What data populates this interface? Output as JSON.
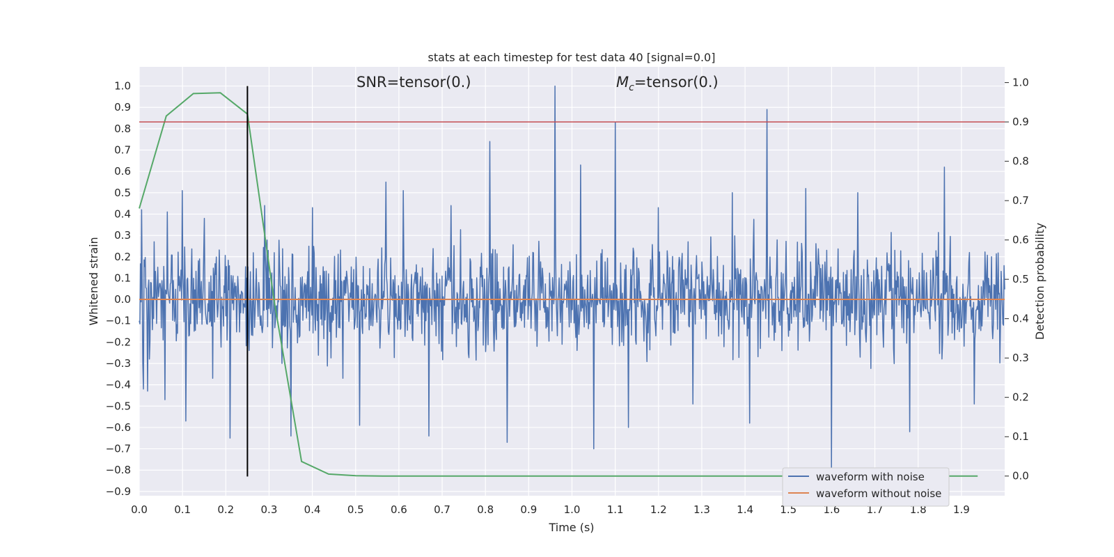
{
  "chart_data": {
    "type": "line",
    "title": "stats at each timestep for test data 40 [signal=0.0]",
    "xlabel": "Time (s)",
    "ylabel_left": "Whitened strain",
    "ylabel_right": "Detection probability",
    "xlim": [
      0.0,
      2.0
    ],
    "ylim_left": [
      -0.92,
      1.09
    ],
    "ylim_right": [
      -0.05,
      1.04
    ],
    "x_ticks": [
      "0.0",
      "0.1",
      "0.2",
      "0.3",
      "0.4",
      "0.5",
      "0.6",
      "0.7",
      "0.8",
      "0.9",
      "1.0",
      "1.1",
      "1.2",
      "1.3",
      "1.4",
      "1.5",
      "1.6",
      "1.7",
      "1.8",
      "1.9"
    ],
    "y_ticks_left": [
      "1.0",
      "0.9",
      "0.8",
      "0.7",
      "0.6",
      "0.5",
      "0.4",
      "0.3",
      "0.2",
      "0.1",
      "0.0",
      "−0.1",
      "−0.2",
      "−0.3",
      "−0.4",
      "−0.5",
      "−0.6",
      "−0.7",
      "−0.8",
      "−0.9"
    ],
    "y_ticks_right": [
      "1.0",
      "0.9",
      "0.8",
      "0.7",
      "0.6",
      "0.5",
      "0.4",
      "0.3",
      "0.2",
      "0.1",
      "0.0"
    ],
    "grid": true,
    "legend_position": "bottom-right",
    "annotations": {
      "snr_text": "SNR=tensor(0.)",
      "mc_text_symbol": "M",
      "mc_text_sub": "c",
      "mc_text_rest": "=tensor(0.)"
    },
    "series": [
      {
        "name": "waveform with noise",
        "color": "#4c72b0",
        "axis": "left",
        "x_start": 0.0,
        "x_end": 2.0,
        "spikes": [
          {
            "x": 0.005,
            "y": 0.42
          },
          {
            "x": 0.01,
            "y": -0.42
          },
          {
            "x": 0.02,
            "y": -0.43
          },
          {
            "x": 0.035,
            "y": 0.27
          },
          {
            "x": 0.06,
            "y": -0.47
          },
          {
            "x": 0.065,
            "y": 0.41
          },
          {
            "x": 0.1,
            "y": 0.51
          },
          {
            "x": 0.107,
            "y": -0.57
          },
          {
            "x": 0.15,
            "y": 0.38
          },
          {
            "x": 0.17,
            "y": -0.37
          },
          {
            "x": 0.21,
            "y": -0.65
          },
          {
            "x": 0.29,
            "y": 0.44
          },
          {
            "x": 0.33,
            "y": -0.3
          },
          {
            "x": 0.35,
            "y": -0.64
          },
          {
            "x": 0.4,
            "y": 0.43
          },
          {
            "x": 0.47,
            "y": -0.37
          },
          {
            "x": 0.51,
            "y": -0.59
          },
          {
            "x": 0.57,
            "y": 0.55
          },
          {
            "x": 0.61,
            "y": 0.51
          },
          {
            "x": 0.67,
            "y": -0.64
          },
          {
            "x": 0.72,
            "y": 0.44
          },
          {
            "x": 0.81,
            "y": 0.74
          },
          {
            "x": 0.85,
            "y": -0.67
          },
          {
            "x": 0.96,
            "y": 1.0
          },
          {
            "x": 1.02,
            "y": 0.63
          },
          {
            "x": 1.05,
            "y": -0.7
          },
          {
            "x": 1.1,
            "y": 0.83
          },
          {
            "x": 1.13,
            "y": -0.6
          },
          {
            "x": 1.2,
            "y": 0.43
          },
          {
            "x": 1.28,
            "y": -0.49
          },
          {
            "x": 1.37,
            "y": 0.5
          },
          {
            "x": 1.41,
            "y": -0.58
          },
          {
            "x": 1.45,
            "y": 0.89
          },
          {
            "x": 1.54,
            "y": 0.52
          },
          {
            "x": 1.6,
            "y": -0.8
          },
          {
            "x": 1.66,
            "y": 0.5
          },
          {
            "x": 1.78,
            "y": -0.62
          },
          {
            "x": 1.86,
            "y": 0.62
          },
          {
            "x": 1.93,
            "y": -0.49
          }
        ],
        "typical_amplitude": 0.22
      },
      {
        "name": "waveform without noise",
        "color": "#dd8452",
        "axis": "left",
        "x": [
          0.0,
          2.0
        ],
        "y": [
          0.0,
          0.0
        ]
      },
      {
        "name": "",
        "color": "#55a868",
        "axis": "right",
        "x": [
          0.0,
          0.0625,
          0.125,
          0.1875,
          0.25,
          0.3125,
          0.375,
          0.4375,
          0.5,
          0.5625,
          0.625,
          0.6875,
          0.75,
          0.8125,
          0.875,
          0.9375,
          1.0,
          1.0625,
          1.125,
          1.1875,
          1.25,
          1.3125,
          1.375,
          1.4375,
          1.5,
          1.5625,
          1.625,
          1.6875,
          1.75,
          1.8125,
          1.875,
          1.9375
        ],
        "y": [
          0.68,
          0.915,
          0.972,
          0.974,
          0.92,
          0.44,
          0.037,
          0.005,
          0.001,
          0.0,
          0.0,
          0.0,
          0.0,
          0.0,
          0.0,
          0.0,
          0.0,
          0.0,
          0.0,
          0.0,
          0.0,
          0.0,
          0.0,
          0.0,
          0.0,
          0.0,
          0.0,
          0.0,
          0.0,
          0.0,
          0.0,
          0.0
        ]
      }
    ],
    "threshold": {
      "color": "#c44e52",
      "axis": "right",
      "y": 0.9
    },
    "marker_line": {
      "color": "#000000",
      "x": 0.25,
      "y_from": -0.83,
      "y_to": 1.0
    }
  }
}
